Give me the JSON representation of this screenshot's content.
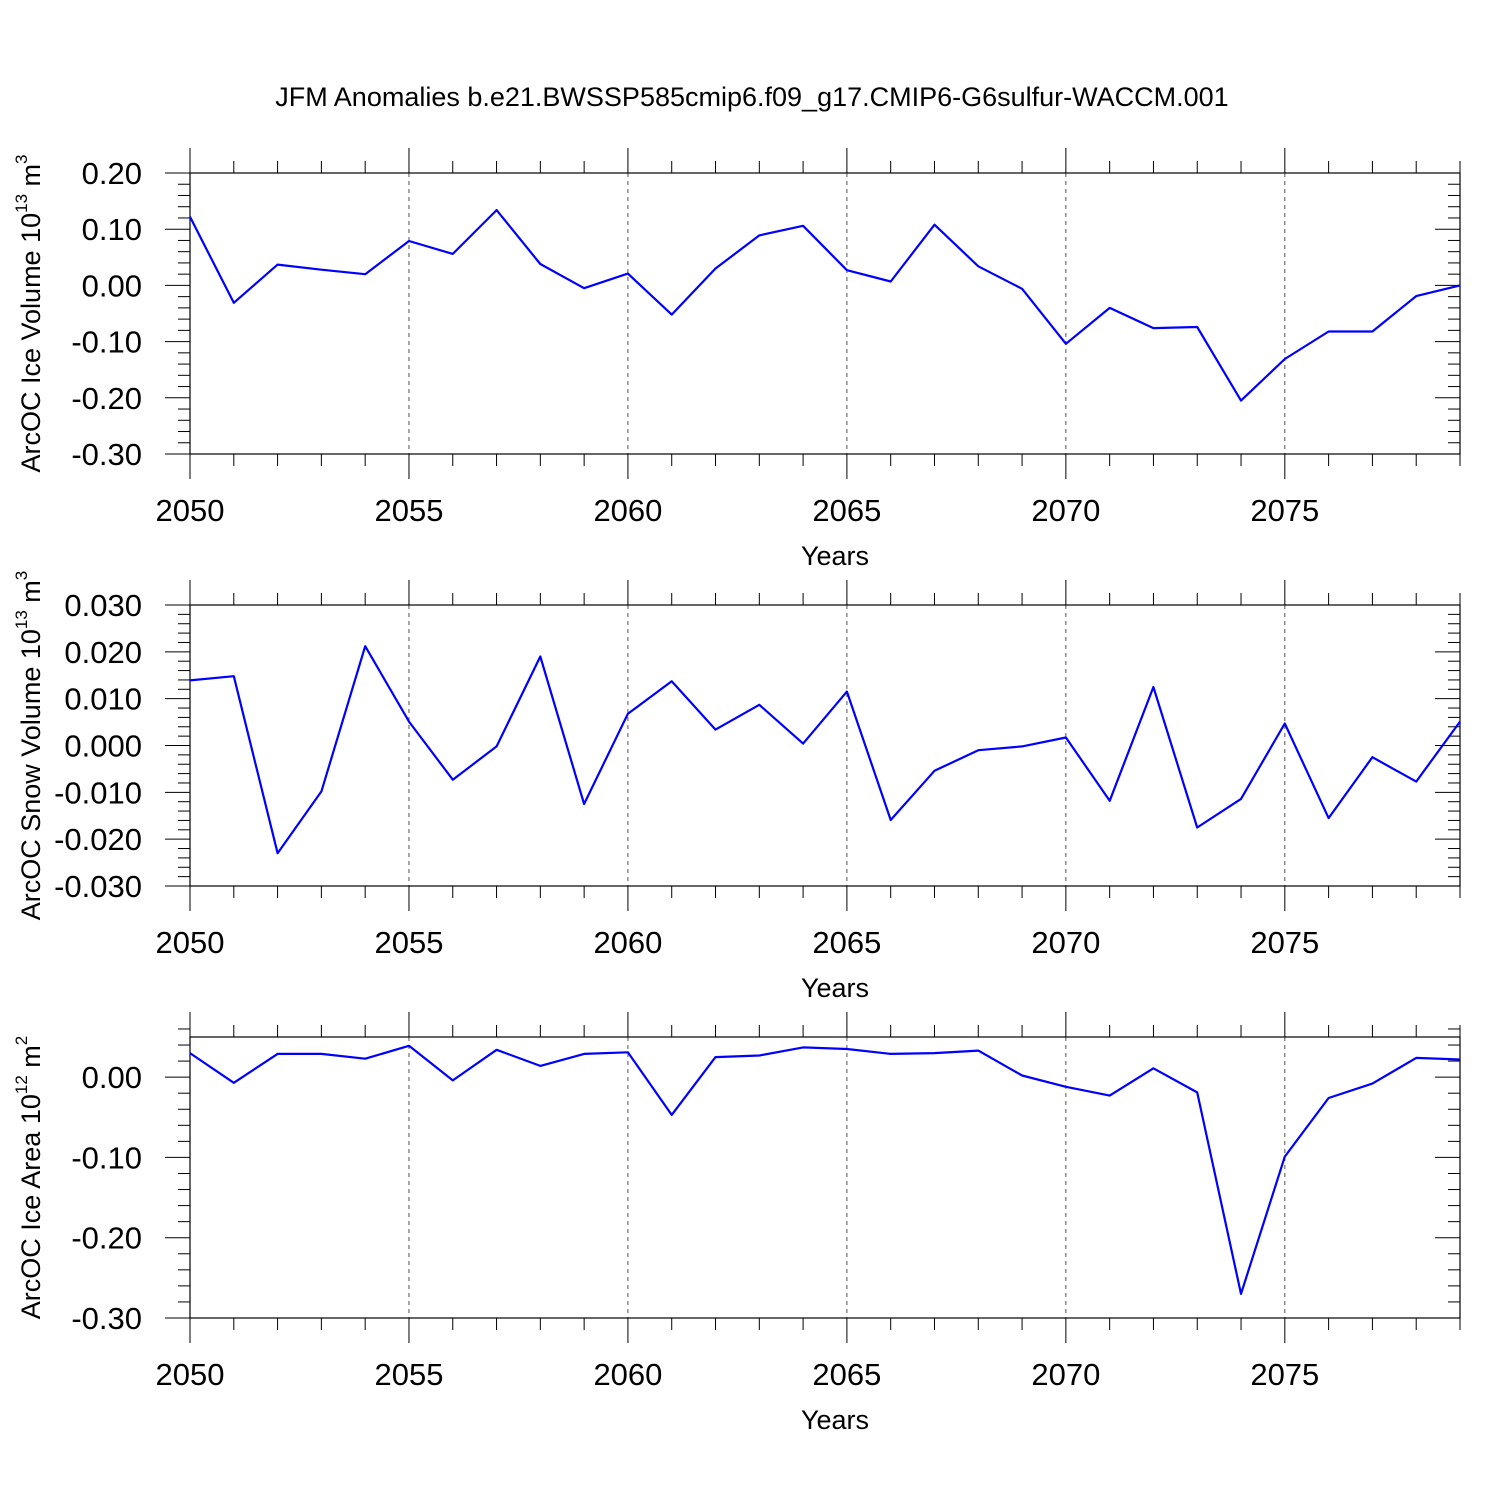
{
  "figure_title": "JFM Anomalies b.e21.BWSSP585cmip6.f09_g17.CMIP6-G6sulfur-WACCM.001",
  "line_color": "#0000ff",
  "chart_data": [
    {
      "type": "line",
      "ylabel": "ArcOC Ice Volume 10",
      "ylabel_exp": "13",
      "ylabel_unit": " m",
      "ylabel_unit_exp": "3",
      "xlabel": "Years",
      "xlim": [
        2050,
        2079
      ],
      "ylim": [
        -0.3,
        0.2
      ],
      "x_ticks": [
        2050,
        2055,
        2060,
        2065,
        2070,
        2075
      ],
      "y_ticks": [
        "-0.30",
        "-0.20",
        "-0.10",
        "0.00",
        "0.10",
        "0.20"
      ],
      "grid": "vertical dashed at major x ticks",
      "series": [
        {
          "x": [
            2050,
            2051,
            2052,
            2053,
            2054,
            2055,
            2056,
            2057,
            2058,
            2059,
            2060,
            2061,
            2062,
            2063,
            2064,
            2065,
            2066,
            2067,
            2068,
            2069,
            2070,
            2071,
            2072,
            2073,
            2074,
            2075,
            2076,
            2077,
            2078,
            2079
          ],
          "values": [
            0.122,
            -0.031,
            0.037,
            0.028,
            0.02,
            0.079,
            0.056,
            0.134,
            0.038,
            -0.005,
            0.021,
            -0.052,
            0.03,
            0.089,
            0.106,
            0.027,
            0.007,
            0.108,
            0.034,
            -0.006,
            -0.104,
            -0.04,
            -0.076,
            -0.074,
            -0.205,
            -0.131,
            -0.082,
            -0.082,
            -0.019,
            0.0
          ]
        }
      ]
    },
    {
      "type": "line",
      "ylabel": "ArcOC Snow Volume 10",
      "ylabel_exp": "13",
      "ylabel_unit": " m",
      "ylabel_unit_exp": "3",
      "xlabel": "Years",
      "xlim": [
        2050,
        2079
      ],
      "ylim": [
        -0.03,
        0.03
      ],
      "x_ticks": [
        2050,
        2055,
        2060,
        2065,
        2070,
        2075
      ],
      "y_ticks": [
        "-0.030",
        "-0.020",
        "-0.010",
        "0.000",
        "0.010",
        "0.020",
        "0.030"
      ],
      "grid": "vertical dashed at major x ticks",
      "series": [
        {
          "x": [
            2050,
            2051,
            2052,
            2053,
            2054,
            2055,
            2056,
            2057,
            2058,
            2059,
            2060,
            2061,
            2062,
            2063,
            2064,
            2065,
            2066,
            2067,
            2068,
            2069,
            2070,
            2071,
            2072,
            2073,
            2074,
            2075,
            2076,
            2077,
            2078,
            2079
          ],
          "values": [
            0.0139,
            0.0148,
            -0.023,
            -0.0098,
            0.0212,
            0.0051,
            -0.0073,
            -0.0002,
            0.019,
            -0.0125,
            0.0068,
            0.0137,
            0.0034,
            0.0087,
            0.0004,
            0.0115,
            -0.0159,
            -0.0054,
            -0.001,
            -0.0002,
            0.0017,
            -0.0118,
            0.0125,
            -0.0175,
            -0.0114,
            0.0047,
            -0.0155,
            -0.0025,
            -0.0077,
            0.0051
          ]
        }
      ]
    },
    {
      "type": "line",
      "ylabel": "ArcOC Ice Area 10",
      "ylabel_exp": "12",
      "ylabel_unit": " m",
      "ylabel_unit_exp": "2",
      "xlabel": "Years",
      "xlim": [
        2050,
        2079
      ],
      "ylim": [
        -0.3,
        0.05
      ],
      "x_ticks": [
        2050,
        2055,
        2060,
        2065,
        2070,
        2075
      ],
      "y_ticks": [
        "-0.30",
        "-0.20",
        "-0.10",
        "0.00"
      ],
      "grid": "vertical dashed at major x ticks",
      "series": [
        {
          "x": [
            2050,
            2051,
            2052,
            2053,
            2054,
            2055,
            2056,
            2057,
            2058,
            2059,
            2060,
            2061,
            2062,
            2063,
            2064,
            2065,
            2066,
            2067,
            2068,
            2069,
            2070,
            2071,
            2072,
            2073,
            2074,
            2075,
            2076,
            2077,
            2078,
            2079
          ],
          "values": [
            0.03,
            -0.007,
            0.029,
            0.029,
            0.023,
            0.039,
            -0.004,
            0.034,
            0.014,
            0.029,
            0.031,
            -0.047,
            0.025,
            0.027,
            0.037,
            0.035,
            0.029,
            0.03,
            0.033,
            0.002,
            -0.012,
            -0.023,
            0.011,
            -0.019,
            -0.27,
            -0.099,
            -0.026,
            -0.008,
            0.024,
            0.022
          ]
        }
      ]
    }
  ]
}
